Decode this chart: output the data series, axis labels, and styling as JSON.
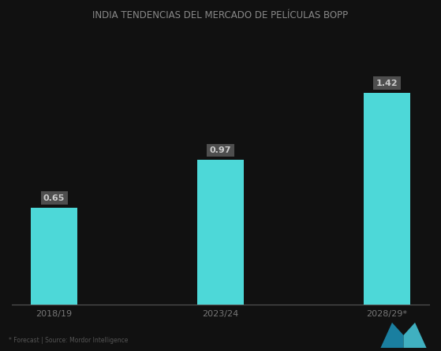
{
  "title": "INDIA TENDENCIAS DEL MERCADO DE PELÍCULAS BOPP",
  "categories": [
    "2018/19",
    "2023/24",
    "2028/29*"
  ],
  "values": [
    0.65,
    0.97,
    1.42
  ],
  "bar_color": "#4dd8d8",
  "bar_labels": [
    "0.65",
    "0.97",
    "1.42"
  ],
  "background_color": "#111111",
  "text_color": "#888888",
  "label_bg_color": "#555555",
  "label_text_color": "#cccccc",
  "ylim": [
    0,
    1.8
  ],
  "bar_width": 0.28,
  "footnote": "* Forecast | Source: Mordor Intelligence",
  "title_color": "#888888",
  "title_fontsize": 8.5,
  "axis_line_color": "#555555",
  "tick_color": "#777777",
  "tick_fontsize": 8
}
